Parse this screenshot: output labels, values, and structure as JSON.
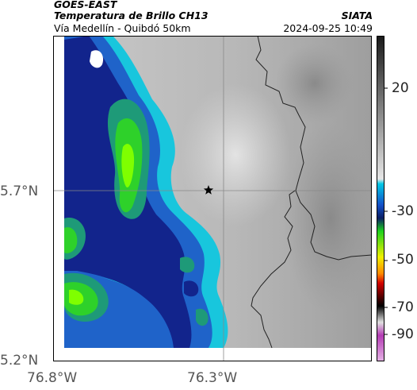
{
  "header": {
    "satellite": "GOES-EAST",
    "product": "Temperatura de Brillo CH13",
    "region": "Vía Medellín - Quibdó 50km",
    "organization": "SIATA",
    "timestamp": "2024-09-25 10:49"
  },
  "axes": {
    "lat_ticks": [
      "5.7°N",
      "5.2°N"
    ],
    "lon_ticks": [
      "76.8°W",
      "76.3°W"
    ]
  },
  "colorbar": {
    "ticks": [
      "20",
      "-30",
      "-50",
      "-70",
      "-90"
    ],
    "colors": {
      "warm_gray_dark": "#1a1a1a",
      "warm_gray_light": "#e6e6e6",
      "cyan": "#00c8e6",
      "blue": "#1450c8",
      "navy": "#0a1e64",
      "green": "#1ed21e",
      "yellow": "#f0f000",
      "orange": "#ff8c00",
      "red": "#d20000",
      "black": "#000000",
      "magenta": "#b43cb4"
    }
  },
  "map": {
    "marker_icon": "star-icon",
    "cloud_colors": {
      "cyan": "#17c3dc",
      "blue": "#1d62c8",
      "navy": "#12238a",
      "teal": "#1e9a78",
      "green": "#2ed12a",
      "lime": "#7fff00",
      "white": "#ffffff"
    }
  }
}
